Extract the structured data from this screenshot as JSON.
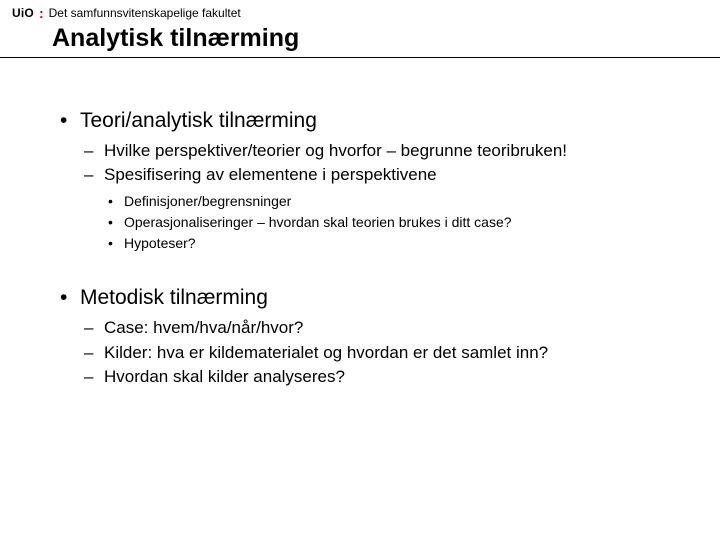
{
  "logo": {
    "prefix": "UiO",
    "rest": "Det samfunnsvitenskapelige fakultet"
  },
  "title": "Analytisk tilnærming",
  "sections": [
    {
      "heading": "Teori/analytisk tilnærming",
      "subitems": [
        {
          "text": "Hvilke perspektiver/teorier og hvorfor – begrunne teoribruken!"
        },
        {
          "text": "Spesifisering av elementene i perspektivene",
          "subsub": [
            "Definisjoner/begrensninger",
            "Operasjonaliseringer – hvordan skal teorien brukes i ditt case?",
            "Hypoteser?"
          ]
        }
      ]
    },
    {
      "heading": "Metodisk tilnærming",
      "subitems": [
        {
          "text": "Case: hvem/hva/når/hvor?"
        },
        {
          "text": "Kilder: hva er kildematerialet og hvordan er det samlet inn?"
        },
        {
          "text": "Hvordan skal kilder analyseres?"
        }
      ]
    }
  ],
  "style": {
    "background_color": "#ffffff",
    "text_color": "#000000",
    "accent_color": "#d00000",
    "rule_color": "#000000",
    "font_family": "Arial",
    "title_fontsize_pt": 19,
    "lvl1_fontsize_pt": 16,
    "lvl2_fontsize_pt": 13,
    "lvl3_fontsize_pt": 11
  }
}
